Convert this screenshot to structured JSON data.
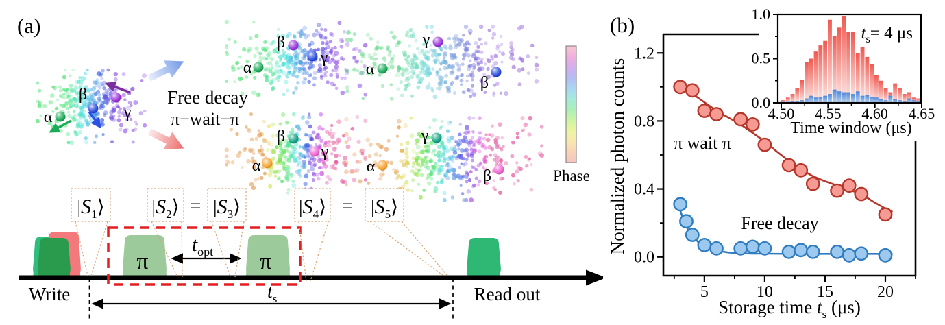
{
  "panel_a": {
    "label": "(a)",
    "free_decay_label": "Free decay",
    "pi_wait_pi_label": "π−wait−π",
    "greek": {
      "alpha": "α",
      "beta": "β",
      "gamma": "γ"
    },
    "phase_label": "Phase",
    "pulse_sequence": {
      "write_label": "Write",
      "read_out_label": "Read out",
      "pi_symbol": "π",
      "t_opt": {
        "t": "t",
        "sub": "opt"
      },
      "t_s": {
        "t": "t",
        "sub": "s"
      },
      "equals": "=",
      "states": [
        {
          "bar": "|",
          "letter": "S",
          "sub": "1",
          "ket": "⟩"
        },
        {
          "bar": "|",
          "letter": "S",
          "sub": "2",
          "ket": "⟩"
        },
        {
          "bar": "|",
          "letter": "S",
          "sub": "3",
          "ket": "⟩"
        },
        {
          "bar": "|",
          "letter": "S",
          "sub": "4",
          "ket": "⟩"
        },
        {
          "bar": "|",
          "letter": "S",
          "sub": "5",
          "ket": "⟩"
        }
      ]
    }
  },
  "panel_b": {
    "label": "(b)",
    "ylabel": "Normalized photon counts",
    "xlabel": {
      "pre": "Storage time ",
      "t": "t",
      "sub": "s",
      "post": " (μs)"
    },
    "series_labels": {
      "pi_wait_pi": "π wait π",
      "free_decay": "Free decay"
    },
    "inset": {
      "xlabel": "Time window (μs)",
      "annotation": {
        "t": "t",
        "sub": "s",
        "post": "= 4 μs"
      }
    }
  },
  "chart_data": [
    {
      "type": "scatter",
      "title": "Storage decay comparison",
      "xlabel": "Storage time t_s (μs)",
      "ylabel": "Normalized photon counts",
      "xlim": [
        1.6,
        22.5
      ],
      "ylim": [
        -0.11,
        1.31
      ],
      "grid": false,
      "xticks": {
        "values": [
          5,
          10,
          15,
          20
        ],
        "labels": [
          "5",
          "10",
          "15",
          "20"
        ],
        "minor": [
          2.5,
          7.5,
          12.5,
          17.5,
          22.5
        ]
      },
      "yticks": {
        "values": [
          0,
          0.4,
          0.8,
          1.2
        ],
        "labels": [
          "0.0",
          "0.4",
          "0.8",
          "1.2"
        ],
        "minor": [
          0.2,
          0.6,
          1.0
        ]
      },
      "series": [
        {
          "name": "π wait π",
          "x": [
            3,
            4,
            5,
            6,
            8,
            9,
            10,
            12,
            13,
            14,
            16,
            17,
            18,
            20
          ],
          "y": [
            1.0,
            0.98,
            0.86,
            0.84,
            0.81,
            0.78,
            0.66,
            0.54,
            0.51,
            0.43,
            0.39,
            0.42,
            0.37,
            0.25
          ],
          "fit_x": [
            2.8,
            4,
            5,
            6,
            7,
            8,
            9,
            10,
            11,
            12,
            13,
            14,
            15,
            16,
            17,
            18,
            19,
            20,
            20.6
          ],
          "fit_y": [
            1.03,
            0.96,
            0.91,
            0.86,
            0.82,
            0.78,
            0.73,
            0.68,
            0.62,
            0.565,
            0.515,
            0.475,
            0.445,
            0.42,
            0.395,
            0.37,
            0.325,
            0.285,
            0.265
          ]
        },
        {
          "name": "Free decay",
          "x": [
            3,
            3.5,
            4,
            5,
            6,
            8,
            9,
            10,
            12,
            13,
            14,
            16,
            17,
            18,
            20
          ],
          "y": [
            0.31,
            0.21,
            0.13,
            0.07,
            0.05,
            0.05,
            0.06,
            0.05,
            0.03,
            0.04,
            0.03,
            0.03,
            0.01,
            0.02,
            0.01
          ],
          "fit_x": [
            2.8,
            3.2,
            3.6,
            4,
            4.5,
            5,
            5.5,
            6,
            7,
            8,
            9,
            10,
            12,
            14,
            16,
            18,
            20,
            20.6
          ],
          "fit_y": [
            0.318,
            0.23,
            0.167,
            0.124,
            0.086,
            0.062,
            0.047,
            0.037,
            0.026,
            0.021,
            0.019,
            0.019,
            0.018,
            0.018,
            0.018,
            0.018,
            0.018,
            0.018
          ]
        }
      ],
      "legend_position": "inline-labels"
    },
    {
      "type": "bar",
      "title": "Inset histogram",
      "annotation": "t_s = 4 μs",
      "xlabel": "Time window (μs)",
      "xlim": [
        4.496,
        4.649
      ],
      "ylim": [
        0,
        1.03
      ],
      "xticks": {
        "values": [
          4.5,
          4.55,
          4.6,
          4.65
        ],
        "labels": [
          "4.50",
          "4.55",
          "4.60",
          "4.65"
        ],
        "minor": [
          4.525,
          4.575,
          4.625
        ]
      },
      "yticks": {
        "values": [
          0,
          0.5,
          1.0
        ],
        "labels": [
          "0.0",
          "0.5",
          "1.0"
        ],
        "minor": [
          0.25,
          0.75
        ]
      },
      "bin_start": 4.5,
      "bin_width": 0.005,
      "series": [
        {
          "name": "π wait π",
          "values": [
            0.03,
            0.06,
            0.1,
            0.17,
            0.26,
            0.46,
            0.5,
            0.58,
            0.65,
            0.7,
            0.94,
            0.76,
            0.85,
            0.98,
            0.8,
            0.8,
            0.56,
            0.63,
            0.52,
            0.44,
            0.31,
            0.25,
            0.17,
            0.12,
            0.22,
            0.17,
            0.1,
            0.12,
            0.06,
            0.05
          ]
        },
        {
          "name": "Free decay",
          "values": [
            0.01,
            0.01,
            0.02,
            0.02,
            0.03,
            0.05,
            0.08,
            0.06,
            0.07,
            0.08,
            0.1,
            0.15,
            0.13,
            0.12,
            0.12,
            0.1,
            0.13,
            0.08,
            0.09,
            0.07,
            0.06,
            0.04,
            0.03,
            0.08,
            0.04,
            0.03,
            0.02,
            0.05,
            0.03,
            0.02
          ]
        }
      ]
    }
  ],
  "colors": {
    "red_series_line": "#b5372c",
    "red_series_fill": "#f59b93",
    "blue_series_line": "#2f7cc0",
    "blue_series_fill": "#9dc9ef",
    "pi_wait_pi_text": "#ef8a8a",
    "free_decay_text": "#84b1e3",
    "panel_a_free_decay_text": "#85a8dc",
    "panel_a_pi_wait_text": "#e97070",
    "hist_red_top": "#ef5a52",
    "hist_red_bottom": "#fdeae7",
    "hist_blue_top": "#4f86d8",
    "hist_blue_bottom": "#bad4f0",
    "pulse_red": "#f4797c",
    "pulse_green_front": "#2a9a4d",
    "pulse_green_back": "#2ebd7e",
    "pulse_pi": "#9cca9a",
    "pulse_readout": "#2eb873",
    "dashed_box": "#e02020",
    "state_box": "#d8a878",
    "arrow_blue_from": "#e8eefb",
    "arrow_blue_to": "#6f97e8",
    "arrow_red_from": "#fbeaea",
    "arrow_red_to": "#ec6a6a",
    "small_arrow_green": "#1cab57",
    "small_arrow_blue": "#2b50e8",
    "small_arrow_purple": "#7b2e9e",
    "sphere_green": "#18a855",
    "sphere_blue": "#2446dd",
    "sphere_purple": "#9a2fd8",
    "sphere_orange": "#f5a02c",
    "sphere_teal": "#0fa07e",
    "sphere_pink": "#ee5fd0",
    "phase_gradient": [
      "#f7c9d0",
      "#f2aedd",
      "#d4aeee",
      "#b4bdf4",
      "#a9d6f2",
      "#a5e9dc",
      "#abefb8",
      "#ccf4a3",
      "#ecf4a2",
      "#f7e8ae",
      "#f8d4b6",
      "#f5c5c2"
    ]
  }
}
